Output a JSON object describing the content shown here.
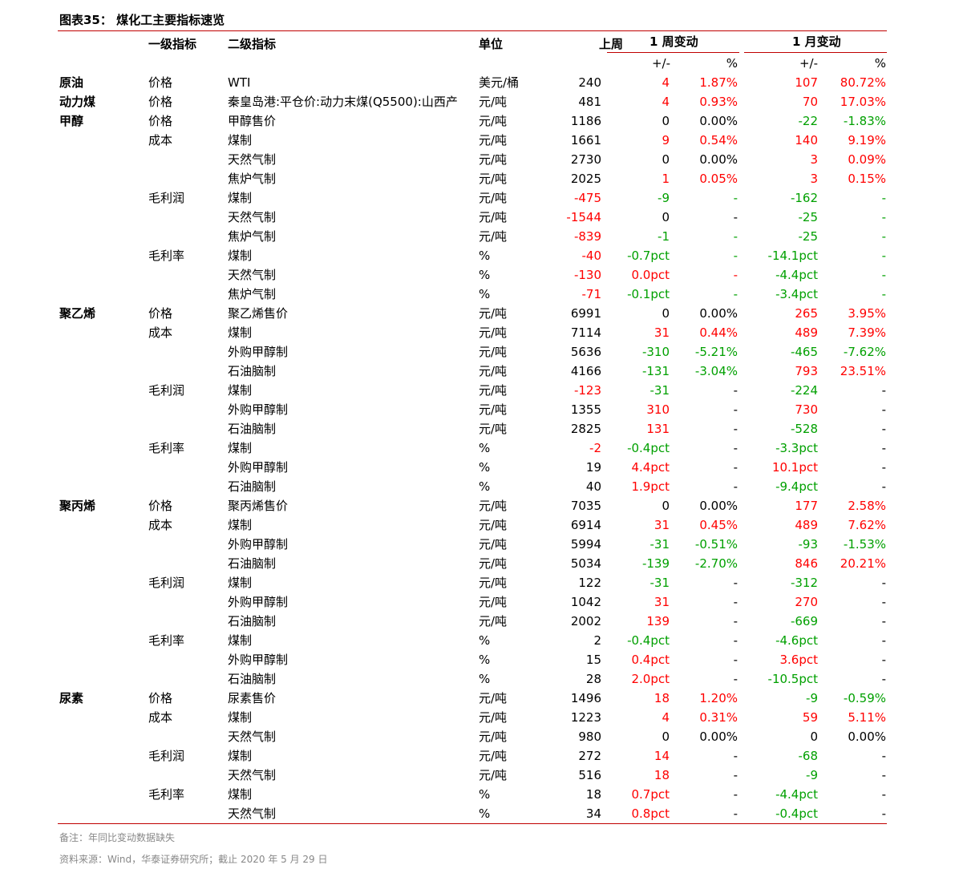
{
  "header": {
    "title": "图表35：  煤化工主要指标速览",
    "columns": [
      "一级指标",
      "二级指标",
      "单位",
      "上周"
    ],
    "groups": [
      "1 周变动",
      "1 月变动"
    ],
    "subcolumns": [
      "+/-",
      "%",
      "+/-",
      "%"
    ]
  },
  "palette": {
    "r": "#ff0000",
    "g": "#00a000",
    "k": "#000000"
  },
  "table": {
    "rows": [
      [
        "原油",
        "价格",
        "WTI",
        "美元/桶",
        "240",
        "4",
        "1.87%",
        "107",
        "80.72%",
        "krrrr"
      ],
      [
        "动力煤",
        "价格",
        "秦皇岛港:平仓价:动力末煤(Q5500):山西产",
        "元/吨",
        "481",
        "4",
        "0.93%",
        "70",
        "17.03%",
        "krrrr"
      ],
      [
        "甲醇",
        "价格",
        "甲醇售价",
        "元/吨",
        "1186",
        "0",
        "0.00%",
        "-22",
        "-1.83%",
        "kkkgg"
      ],
      [
        null,
        "成本",
        "煤制",
        "元/吨",
        "1661",
        "9",
        "0.54%",
        "140",
        "9.19%",
        "krrrr"
      ],
      [
        null,
        null,
        "天然气制",
        "元/吨",
        "2730",
        "0",
        "0.00%",
        "3",
        "0.09%",
        "kkkrr"
      ],
      [
        null,
        null,
        "焦炉气制",
        "元/吨",
        "2025",
        "1",
        "0.05%",
        "3",
        "0.15%",
        "krrrr"
      ],
      [
        null,
        "毛利润",
        "煤制",
        "元/吨",
        "-475",
        "-9",
        "-",
        "-162",
        "-",
        "rgggg"
      ],
      [
        null,
        null,
        "天然气制",
        "元/吨",
        "-1544",
        "0",
        "-",
        "-25",
        "-",
        "rkkgg"
      ],
      [
        null,
        null,
        "焦炉气制",
        "元/吨",
        "-839",
        "-1",
        "-",
        "-25",
        "-",
        "rgggg"
      ],
      [
        null,
        "毛利率",
        "煤制",
        "%",
        "-40",
        "-0.7pct",
        "-",
        "-14.1pct",
        "-",
        "rgggg"
      ],
      [
        null,
        null,
        "天然气制",
        "%",
        "-130",
        "0.0pct",
        "-",
        "-4.4pct",
        "-",
        "rrrgg"
      ],
      [
        null,
        null,
        "焦炉气制",
        "%",
        "-71",
        "-0.1pct",
        "-",
        "-3.4pct",
        "-",
        "rgggg"
      ],
      [
        "聚乙烯",
        "价格",
        "聚乙烯售价",
        "元/吨",
        "6991",
        "0",
        "0.00%",
        "265",
        "3.95%",
        "kkkrr"
      ],
      [
        null,
        "成本",
        "煤制",
        "元/吨",
        "7114",
        "31",
        "0.44%",
        "489",
        "7.39%",
        "krrrr"
      ],
      [
        null,
        null,
        "外购甲醇制",
        "元/吨",
        "5636",
        "-310",
        "-5.21%",
        "-465",
        "-7.62%",
        "kgggg"
      ],
      [
        null,
        null,
        "石油脑制",
        "元/吨",
        "4166",
        "-131",
        "-3.04%",
        "793",
        "23.51%",
        "kggrr"
      ],
      [
        null,
        "毛利润",
        "煤制",
        "元/吨",
        "-123",
        "-31",
        "-",
        "-224",
        "-",
        "rgkgk"
      ],
      [
        null,
        null,
        "外购甲醇制",
        "元/吨",
        "1355",
        "310",
        "-",
        "730",
        "-",
        "krkrk"
      ],
      [
        null,
        null,
        "石油脑制",
        "元/吨",
        "2825",
        "131",
        "-",
        "-528",
        "-",
        "krkgk"
      ],
      [
        null,
        "毛利率",
        "煤制",
        "%",
        "-2",
        "-0.4pct",
        "-",
        "-3.3pct",
        "-",
        "rgkgk"
      ],
      [
        null,
        null,
        "外购甲醇制",
        "%",
        "19",
        "4.4pct",
        "-",
        "10.1pct",
        "-",
        "krkrk"
      ],
      [
        null,
        null,
        "石油脑制",
        "%",
        "40",
        "1.9pct",
        "-",
        "-9.4pct",
        "-",
        "krkgk"
      ],
      [
        "聚丙烯",
        "价格",
        "聚丙烯售价",
        "元/吨",
        "7035",
        "0",
        "0.00%",
        "177",
        "2.58%",
        "kkkrr"
      ],
      [
        null,
        "成本",
        "煤制",
        "元/吨",
        "6914",
        "31",
        "0.45%",
        "489",
        "7.62%",
        "krrrr"
      ],
      [
        null,
        null,
        "外购甲醇制",
        "元/吨",
        "5994",
        "-31",
        "-0.51%",
        "-93",
        "-1.53%",
        "kgggg"
      ],
      [
        null,
        null,
        "石油脑制",
        "元/吨",
        "5034",
        "-139",
        "-2.70%",
        "846",
        "20.21%",
        "kggrr"
      ],
      [
        null,
        "毛利润",
        "煤制",
        "元/吨",
        "122",
        "-31",
        "-",
        "-312",
        "-",
        "kgkgk"
      ],
      [
        null,
        null,
        "外购甲醇制",
        "元/吨",
        "1042",
        "31",
        "-",
        "270",
        "-",
        "krkrk"
      ],
      [
        null,
        null,
        "石油脑制",
        "元/吨",
        "2002",
        "139",
        "-",
        "-669",
        "-",
        "krkgk"
      ],
      [
        null,
        "毛利率",
        "煤制",
        "%",
        "2",
        "-0.4pct",
        "-",
        "-4.6pct",
        "-",
        "kgkgk"
      ],
      [
        null,
        null,
        "外购甲醇制",
        "%",
        "15",
        "0.4pct",
        "-",
        "3.6pct",
        "-",
        "krkrk"
      ],
      [
        null,
        null,
        "石油脑制",
        "%",
        "28",
        "2.0pct",
        "-",
        "-10.5pct",
        "-",
        "krkgk"
      ],
      [
        "尿素",
        "价格",
        "尿素售价",
        "元/吨",
        "1496",
        "18",
        "1.20%",
        "-9",
        "-0.59%",
        "krrgg"
      ],
      [
        null,
        "成本",
        "煤制",
        "元/吨",
        "1223",
        "4",
        "0.31%",
        "59",
        "5.11%",
        "krrrr"
      ],
      [
        null,
        null,
        "天然气制",
        "元/吨",
        "980",
        "0",
        "0.00%",
        "0",
        "0.00%",
        "kkkkk"
      ],
      [
        null,
        "毛利润",
        "煤制",
        "元/吨",
        "272",
        "14",
        "-",
        "-68",
        "-",
        "krkgk"
      ],
      [
        null,
        null,
        "天然气制",
        "元/吨",
        "516",
        "18",
        "-",
        "-9",
        "-",
        "krkgk"
      ],
      [
        null,
        "毛利率",
        "煤制",
        "%",
        "18",
        "0.7pct",
        "-",
        "-4.4pct",
        "-",
        "krkgk"
      ],
      [
        null,
        null,
        "天然气制",
        "%",
        "34",
        "0.8pct",
        "-",
        "-0.4pct",
        "-",
        "krkgk"
      ]
    ]
  },
  "footer": {
    "note": "备注：年同比变动数据缺失",
    "source": "资料来源：Wind，华泰证券研究所；截止 2020 年 5 月 29 日"
  }
}
